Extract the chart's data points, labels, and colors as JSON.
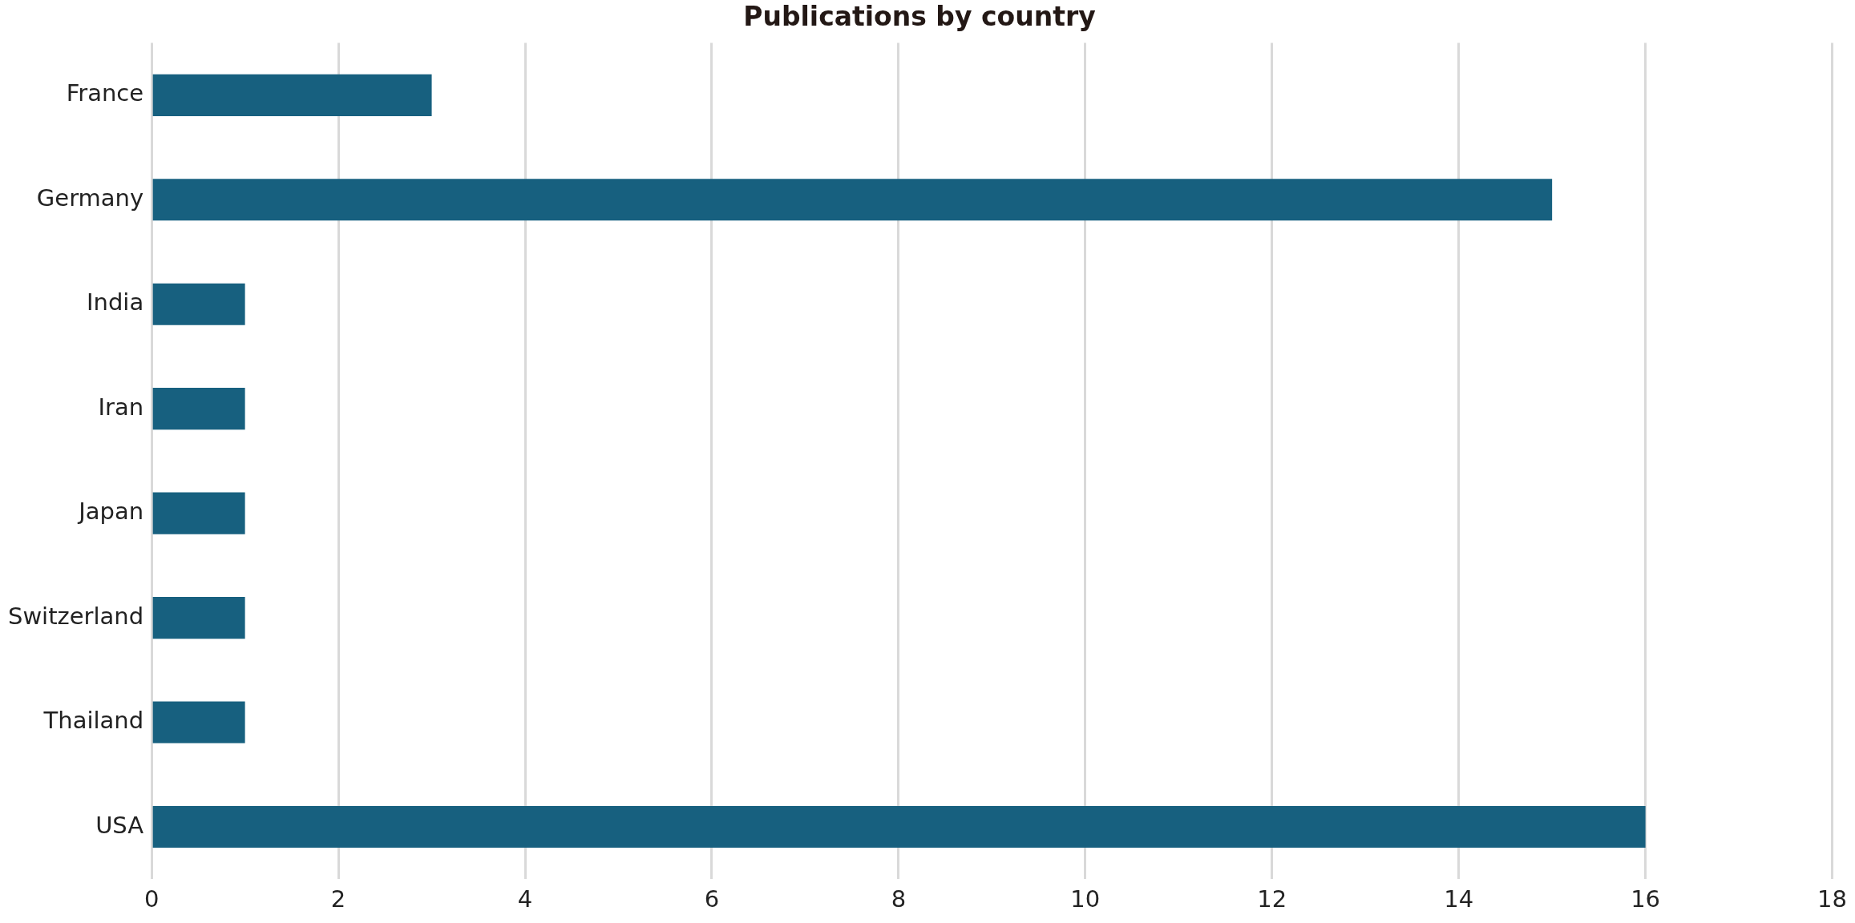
{
  "chart_data": {
    "type": "bar",
    "orientation": "horizontal",
    "title": "Publications by country",
    "categories": [
      "France",
      "Germany",
      "India",
      "Iran",
      "Japan",
      "Switzerland",
      "Thailand",
      "USA"
    ],
    "values": [
      3,
      15,
      1,
      1,
      1,
      1,
      1,
      16
    ],
    "color": "#17607f",
    "xlim": [
      0,
      18
    ],
    "xticks": [
      0,
      2,
      4,
      6,
      8,
      10,
      12,
      14,
      16,
      18
    ],
    "grid": "x",
    "legend": false
  }
}
